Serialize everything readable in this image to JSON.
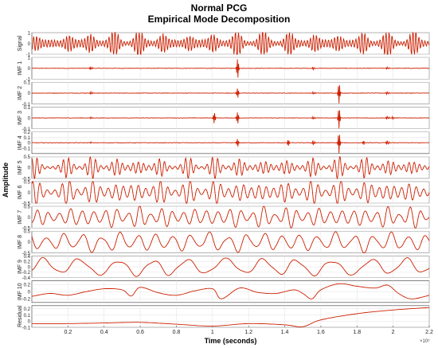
{
  "figure": {
    "title": "Normal PCG",
    "subtitle": "Empirical Mode Decomposition",
    "ylabel": "Amplitude",
    "xlabel": "Time (seconds)",
    "x_exponent": "×10⁵"
  },
  "chart_data": {
    "type": "line",
    "title": "Normal PCG",
    "subtitle": "Empirical Mode Decomposition",
    "xlabel": "Time (seconds)",
    "ylabel": "Amplitude",
    "x_multiplier": "x10^5",
    "xlim": [
      0,
      2.2
    ],
    "x_ticks": [
      0.2,
      0.4,
      0.6,
      0.8,
      1,
      1.2,
      1.4,
      1.6,
      1.8,
      2,
      2.2
    ],
    "grid": true,
    "line_color": "#cc1f00",
    "beats": [
      0.02,
      0.2,
      0.33,
      0.46,
      0.59,
      0.72,
      0.87,
      1.01,
      1.14,
      1.28,
      1.42,
      1.56,
      1.7,
      1.84,
      1.97,
      2.11
    ],
    "panels": [
      {
        "label": "Signal",
        "ylim": [
          -1,
          1
        ],
        "yticks": [
          1,
          0,
          -1
        ],
        "shape": "beats",
        "freq": 60,
        "base": 0.3,
        "burst": 1.0
      },
      {
        "label": "IMF 1",
        "ylim": [
          -1,
          1
        ],
        "yticks": [
          1,
          0,
          -1
        ],
        "shape": "spikes",
        "spikes": [
          [
            0.33,
            0.5
          ],
          [
            1.14,
            1.0
          ],
          [
            1.56,
            0.4
          ],
          [
            1.97,
            0.3
          ]
        ]
      },
      {
        "label": "IMF 2",
        "ylim": [
          -0.1,
          0.1
        ],
        "yticks": [
          0.1,
          0,
          -0.1
        ],
        "shape": "spikes",
        "spikes": [
          [
            0.33,
            0.4
          ],
          [
            1.14,
            0.5
          ],
          [
            1.56,
            0.3
          ],
          [
            1.7,
            1.0
          ],
          [
            1.97,
            0.4
          ]
        ]
      },
      {
        "label": "IMF 3",
        "ylim": [
          -0.1,
          0.1
        ],
        "yticks": [
          0.1,
          0,
          -0.1
        ],
        "shape": "spikes",
        "spikes": [
          [
            0.33,
            0.3
          ],
          [
            1.01,
            0.5
          ],
          [
            1.14,
            0.6
          ],
          [
            1.56,
            0.4
          ],
          [
            1.7,
            1.0
          ],
          [
            1.97,
            0.5
          ],
          [
            2.0,
            0.3
          ]
        ]
      },
      {
        "label": "IMF 4",
        "ylim": [
          -0.2,
          0.2
        ],
        "yticks": [
          0.2,
          0.1,
          0,
          -0.1
        ],
        "shape": "spikes",
        "spikes": [
          [
            0.33,
            0.2
          ],
          [
            1.14,
            0.4
          ],
          [
            1.42,
            0.3
          ],
          [
            1.56,
            0.6
          ],
          [
            1.7,
            1.0
          ],
          [
            1.84,
            0.3
          ],
          [
            1.97,
            0.6
          ]
        ]
      },
      {
        "label": "IMF 5",
        "ylim": [
          -0.5,
          0.5
        ],
        "yticks": [
          0.5,
          0,
          -0.5
        ],
        "shape": "beats",
        "freq": 34,
        "base": 0.15,
        "burst": 0.8
      },
      {
        "label": "IMF 6",
        "ylim": [
          -0.5,
          0.5
        ],
        "yticks": [
          0.5,
          0,
          -0.5
        ],
        "shape": "beats",
        "freq": 24,
        "base": 0.3,
        "burst": 0.75
      },
      {
        "label": "IMF 7",
        "ylim": [
          -0.5,
          0.5
        ],
        "yticks": [
          0.5,
          0,
          -0.5
        ],
        "shape": "beats",
        "freq": 16,
        "base": 0.25,
        "burst": 0.7
      },
      {
        "label": "IMF 8",
        "ylim": [
          -0.5,
          0.5
        ],
        "yticks": [
          0.5,
          0,
          -0.5
        ],
        "shape": "beats",
        "freq": 10,
        "base": 0.2,
        "burst": 0.7
      },
      {
        "label": "IMF 9",
        "ylim": [
          -0.4,
          0.4
        ],
        "yticks": [
          0.4,
          0.2,
          0,
          -0.2,
          -0.4
        ],
        "shape": "beats",
        "freq": 5,
        "base": 0.3,
        "burst": 0.5
      },
      {
        "label": "IMF 10",
        "ylim": [
          -0.3,
          0.3
        ],
        "yticks": [
          0.2,
          0,
          -0.2
        ],
        "shape": "smooth",
        "points": [
          [
            0,
            -0.13
          ],
          [
            0.1,
            -0.05
          ],
          [
            0.2,
            -0.1
          ],
          [
            0.3,
            0.0
          ],
          [
            0.4,
            0.08
          ],
          [
            0.5,
            0.05
          ],
          [
            0.55,
            -0.12
          ],
          [
            0.6,
            0.12
          ],
          [
            0.7,
            -0.03
          ],
          [
            0.8,
            -0.1
          ],
          [
            0.9,
            0.02
          ],
          [
            1.0,
            0.08
          ],
          [
            1.05,
            -0.2
          ],
          [
            1.15,
            0.1
          ],
          [
            1.25,
            -0.02
          ],
          [
            1.35,
            -0.05
          ],
          [
            1.45,
            0.05
          ],
          [
            1.5,
            -0.05
          ],
          [
            1.55,
            -0.2
          ],
          [
            1.6,
            0.05
          ],
          [
            1.7,
            0.22
          ],
          [
            1.8,
            0.15
          ],
          [
            1.9,
            0.1
          ],
          [
            1.97,
            0.18
          ],
          [
            2.03,
            -0.05
          ],
          [
            2.1,
            -0.2
          ],
          [
            2.2,
            -0.1
          ]
        ]
      },
      {
        "label": "Residual",
        "ylim": [
          -0.1,
          0.25
        ],
        "yticks": [
          0.2,
          0.1,
          0,
          -0.1
        ],
        "shape": "smooth",
        "points": [
          [
            0,
            -0.04
          ],
          [
            0.2,
            -0.04
          ],
          [
            0.4,
            -0.03
          ],
          [
            0.6,
            -0.02
          ],
          [
            0.8,
            -0.05
          ],
          [
            1.0,
            -0.08
          ],
          [
            1.2,
            -0.04
          ],
          [
            1.4,
            -0.06
          ],
          [
            1.5,
            -0.09
          ],
          [
            1.6,
            0.02
          ],
          [
            1.8,
            0.12
          ],
          [
            2.0,
            0.18
          ],
          [
            2.2,
            0.22
          ]
        ]
      }
    ]
  }
}
